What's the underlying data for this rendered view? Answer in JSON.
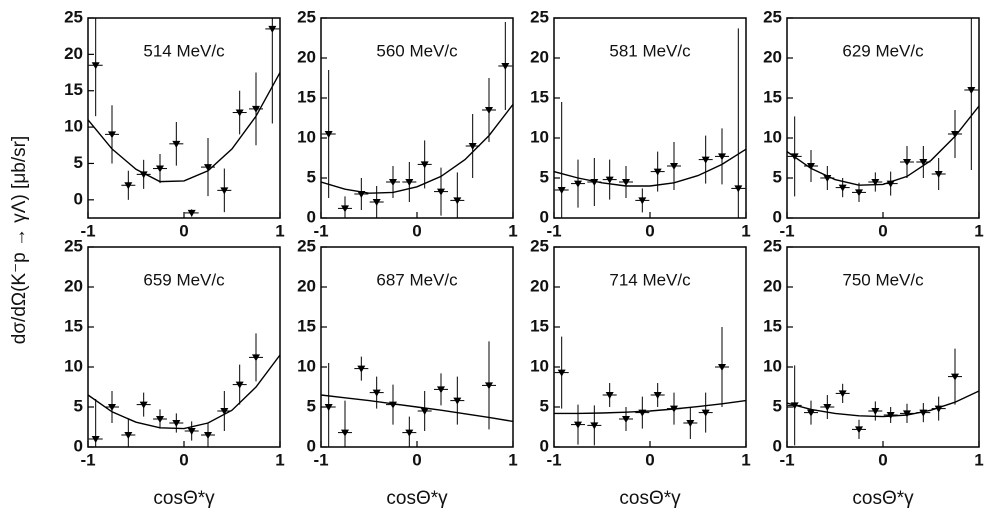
{
  "y_label": "dσ/dΩ(K⁻p → γΛ)  [μb/sr]",
  "chart_data": [
    {
      "type": "scatter",
      "title": "514 MeV/c",
      "xlim": [
        -1,
        1
      ],
      "ylim": [
        -2.5,
        25
      ],
      "xticks": [
        -1,
        0,
        1
      ],
      "yticks": [
        0,
        5,
        10,
        15,
        20,
        25
      ],
      "x": [
        -0.92,
        -0.75,
        -0.58,
        -0.42,
        -0.25,
        -0.08,
        0.08,
        0.25,
        0.42,
        0.58,
        0.75,
        0.92
      ],
      "values": [
        18.5,
        9,
        2,
        3.5,
        4.3,
        7.7,
        -1.8,
        4.5,
        1.3,
        12,
        12.5,
        23.5
      ],
      "errors": [
        7,
        4,
        2,
        2,
        2,
        3,
        0.5,
        4,
        3,
        3,
        5,
        13
      ],
      "curve": {
        "x": [
          -1,
          -0.75,
          -0.5,
          -0.25,
          0,
          0.25,
          0.5,
          0.75,
          1
        ],
        "values": [
          11,
          7,
          4.2,
          2.5,
          2.6,
          4,
          7,
          11.5,
          17.5
        ]
      }
    },
    {
      "type": "scatter",
      "title": "560 MeV/c",
      "xlim": [
        -1,
        1
      ],
      "ylim": [
        0,
        25
      ],
      "xticks": [
        -1,
        0,
        1
      ],
      "yticks": [
        0,
        5,
        10,
        15,
        20,
        25
      ],
      "x": [
        -0.92,
        -0.75,
        -0.58,
        -0.42,
        -0.25,
        -0.08,
        0.08,
        0.25,
        0.42,
        0.58,
        0.75,
        0.92
      ],
      "values": [
        10.5,
        1.2,
        3,
        2,
        4.5,
        4.5,
        6.7,
        3.3,
        2.2,
        9,
        13.5,
        19
      ],
      "errors": [
        8,
        1.5,
        2,
        2,
        2,
        2.5,
        3,
        3,
        3.5,
        4,
        4,
        5.5
      ],
      "curve": {
        "x": [
          -1,
          -0.75,
          -0.5,
          -0.25,
          0,
          0.25,
          0.5,
          0.75,
          1
        ],
        "values": [
          4.5,
          3.6,
          3.1,
          3.2,
          3.9,
          5.2,
          7.3,
          10.3,
          14.2
        ]
      }
    },
    {
      "type": "scatter",
      "title": "581 MeV/c",
      "xlim": [
        -1,
        1
      ],
      "ylim": [
        0,
        25
      ],
      "xticks": [
        -1,
        0,
        1
      ],
      "yticks": [
        0,
        5,
        10,
        15,
        20,
        25
      ],
      "x": [
        -0.92,
        -0.75,
        -0.58,
        -0.42,
        -0.25,
        -0.08,
        0.08,
        0.25,
        0.58,
        0.75,
        0.92
      ],
      "values": [
        3.5,
        4.3,
        4.5,
        4.8,
        4.5,
        2.2,
        5.8,
        6.5,
        7.3,
        7.7,
        3.7
      ],
      "errors": [
        11,
        3,
        3,
        2.5,
        2,
        1.5,
        2.5,
        3,
        3,
        3.5,
        20
      ],
      "curve": {
        "x": [
          -1,
          -0.75,
          -0.5,
          -0.25,
          0,
          0.25,
          0.5,
          0.75,
          1
        ],
        "values": [
          5.8,
          5,
          4.4,
          4,
          4,
          4.4,
          5.3,
          6.7,
          8.6
        ]
      }
    },
    {
      "type": "scatter",
      "title": "629 MeV/c",
      "xlim": [
        -1,
        1
      ],
      "ylim": [
        0,
        25
      ],
      "xticks": [
        -1,
        0,
        1
      ],
      "yticks": [
        0,
        5,
        10,
        15,
        20,
        25
      ],
      "x": [
        -0.92,
        -0.75,
        -0.58,
        -0.42,
        -0.25,
        -0.08,
        0.08,
        0.25,
        0.42,
        0.58,
        0.75,
        0.92
      ],
      "values": [
        7.7,
        6.5,
        5,
        3.8,
        3.2,
        4.5,
        4.3,
        7,
        7,
        5.5,
        10.5,
        16
      ],
      "errors": [
        5,
        2,
        1.5,
        1.2,
        1.2,
        1.2,
        1.5,
        2,
        2,
        2,
        3,
        10
      ],
      "curve": {
        "x": [
          -1,
          -0.75,
          -0.5,
          -0.25,
          0,
          0.25,
          0.5,
          0.75,
          1
        ],
        "values": [
          8.3,
          6.2,
          4.8,
          4.1,
          4.2,
          5.2,
          7.2,
          10.2,
          14
        ]
      }
    },
    {
      "type": "scatter",
      "title": "659 MeV/c",
      "x_label": "cosΘ*γ",
      "xlim": [
        -1,
        1
      ],
      "ylim": [
        0,
        25
      ],
      "xticks": [
        -1,
        0,
        1
      ],
      "yticks": [
        0,
        5,
        10,
        15,
        20,
        25
      ],
      "x": [
        -0.92,
        -0.75,
        -0.58,
        -0.42,
        -0.25,
        -0.08,
        0.08,
        0.25,
        0.42,
        0.58,
        0.75
      ],
      "values": [
        1,
        5,
        1.5,
        5.3,
        3.5,
        3,
        2,
        1.5,
        4.5,
        7.8,
        11.2
      ],
      "errors": [
        5,
        2,
        2,
        1.5,
        1.2,
        1.2,
        1.2,
        1.5,
        2.5,
        2.5,
        3
      ],
      "curve": {
        "x": [
          -1,
          -0.75,
          -0.5,
          -0.25,
          0,
          0.25,
          0.5,
          0.75,
          1
        ],
        "values": [
          6.5,
          4.4,
          3.1,
          2.4,
          2.3,
          3,
          4.6,
          7.5,
          11.5
        ]
      }
    },
    {
      "type": "scatter",
      "title": "687 MeV/c",
      "x_label": "cosΘ*γ",
      "xlim": [
        -1,
        1
      ],
      "ylim": [
        0,
        25
      ],
      "xticks": [
        -1,
        0,
        1
      ],
      "yticks": [
        0,
        5,
        10,
        15,
        20,
        25
      ],
      "x": [
        -0.92,
        -0.75,
        -0.58,
        -0.42,
        -0.25,
        -0.08,
        0.08,
        0.25,
        0.42,
        0.75
      ],
      "values": [
        5,
        1.8,
        9.8,
        6.8,
        5.3,
        1.8,
        4.5,
        7.2,
        5.8,
        7.7
      ],
      "errors": [
        5.5,
        4,
        1.5,
        2,
        2.5,
        2,
        2.5,
        2,
        3,
        5.5
      ],
      "curve": {
        "x": [
          -1,
          -0.75,
          -0.5,
          -0.25,
          0,
          0.25,
          0.5,
          0.75,
          1
        ],
        "values": [
          6.5,
          6.15,
          5.8,
          5.4,
          5,
          4.6,
          4.15,
          3.7,
          3.2
        ]
      }
    },
    {
      "type": "scatter",
      "title": "714 MeV/c",
      "x_label": "cosΘ*γ",
      "xlim": [
        -1,
        1
      ],
      "ylim": [
        0,
        25
      ],
      "xticks": [
        -1,
        0,
        1
      ],
      "yticks": [
        0,
        5,
        10,
        15,
        20,
        25
      ],
      "x": [
        -0.92,
        -0.75,
        -0.58,
        -0.42,
        -0.25,
        -0.08,
        0.08,
        0.25,
        0.42,
        0.58,
        0.75
      ],
      "values": [
        9.3,
        2.8,
        2.7,
        6.5,
        3.5,
        4.3,
        6.5,
        4.8,
        3,
        4.3,
        10
      ],
      "errors": [
        4.5,
        2.5,
        2.5,
        1.5,
        1.5,
        2,
        1.5,
        2,
        2,
        2.5,
        5
      ],
      "curve": {
        "x": [
          -1,
          -0.75,
          -0.5,
          -0.25,
          0,
          0.25,
          0.5,
          0.75,
          1
        ],
        "values": [
          4.2,
          4.2,
          4.25,
          4.35,
          4.5,
          4.75,
          5.05,
          5.4,
          5.8
        ]
      }
    },
    {
      "type": "scatter",
      "title": "750 MeV/c",
      "x_label": "cosΘ*γ",
      "xlim": [
        -1,
        1
      ],
      "ylim": [
        0,
        25
      ],
      "xticks": [
        -1,
        0,
        1
      ],
      "yticks": [
        0,
        5,
        10,
        15,
        20,
        25
      ],
      "x": [
        -0.92,
        -0.75,
        -0.58,
        -0.42,
        -0.25,
        -0.08,
        0.08,
        0.25,
        0.42,
        0.58,
        0.75
      ],
      "values": [
        5.2,
        4.3,
        5,
        6.7,
        2.2,
        4.5,
        4,
        4.2,
        4.3,
        4.8,
        8.8
      ],
      "errors": [
        5,
        1.5,
        1.5,
        1.2,
        1.2,
        1.2,
        1,
        1.2,
        1.2,
        1.5,
        3.5
      ],
      "curve": {
        "x": [
          -1,
          -0.75,
          -0.5,
          -0.25,
          0,
          0.25,
          0.5,
          0.75,
          1
        ],
        "values": [
          5.5,
          4.7,
          4.2,
          3.9,
          3.8,
          4,
          4.6,
          5.6,
          7
        ]
      }
    }
  ]
}
